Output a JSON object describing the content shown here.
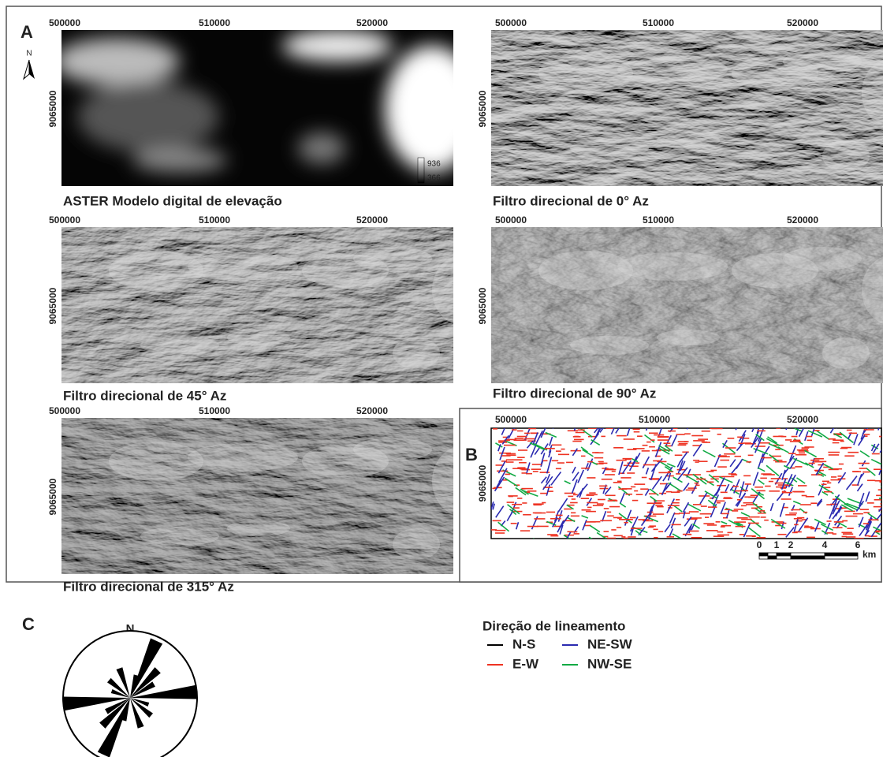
{
  "panel_a": {
    "label": "A",
    "north": "N",
    "panels": [
      {
        "caption": "ASTER Modelo digital de elevação",
        "x_ticks": [
          "500000",
          "510000",
          "520000"
        ],
        "y_tick": "9065000"
      },
      {
        "caption": "Filtro direcional de 0° Az",
        "x_ticks": [
          "500000",
          "510000",
          "520000"
        ],
        "y_tick": "9065000"
      },
      {
        "caption": "Filtro direcional de 45° Az",
        "x_ticks": [
          "500000",
          "510000",
          "520000"
        ],
        "y_tick": "9065000"
      },
      {
        "caption": "Filtro direcional de 90° Az",
        "x_ticks": [
          "500000",
          "510000",
          "520000"
        ],
        "y_tick": "9065000"
      },
      {
        "caption": "Filtro direcional de 315° Az",
        "x_ticks": [
          "500000",
          "510000",
          "520000"
        ],
        "y_tick": "9065000"
      }
    ],
    "legend": {
      "max": "936",
      "min": "366"
    }
  },
  "panel_b": {
    "label": "B",
    "x_ticks": [
      "500000",
      "510000",
      "520000"
    ],
    "y_tick": "9065000",
    "scale": {
      "ticks": [
        "0",
        "1",
        "2",
        "4",
        "6"
      ],
      "unit": "km"
    },
    "legend": {
      "title": "Direção de lineamento",
      "items": [
        "N-S",
        "NE-SW",
        "E-W",
        "NW-SE"
      ]
    }
  },
  "panel_c": {
    "label": "C",
    "north": "N"
  }
}
